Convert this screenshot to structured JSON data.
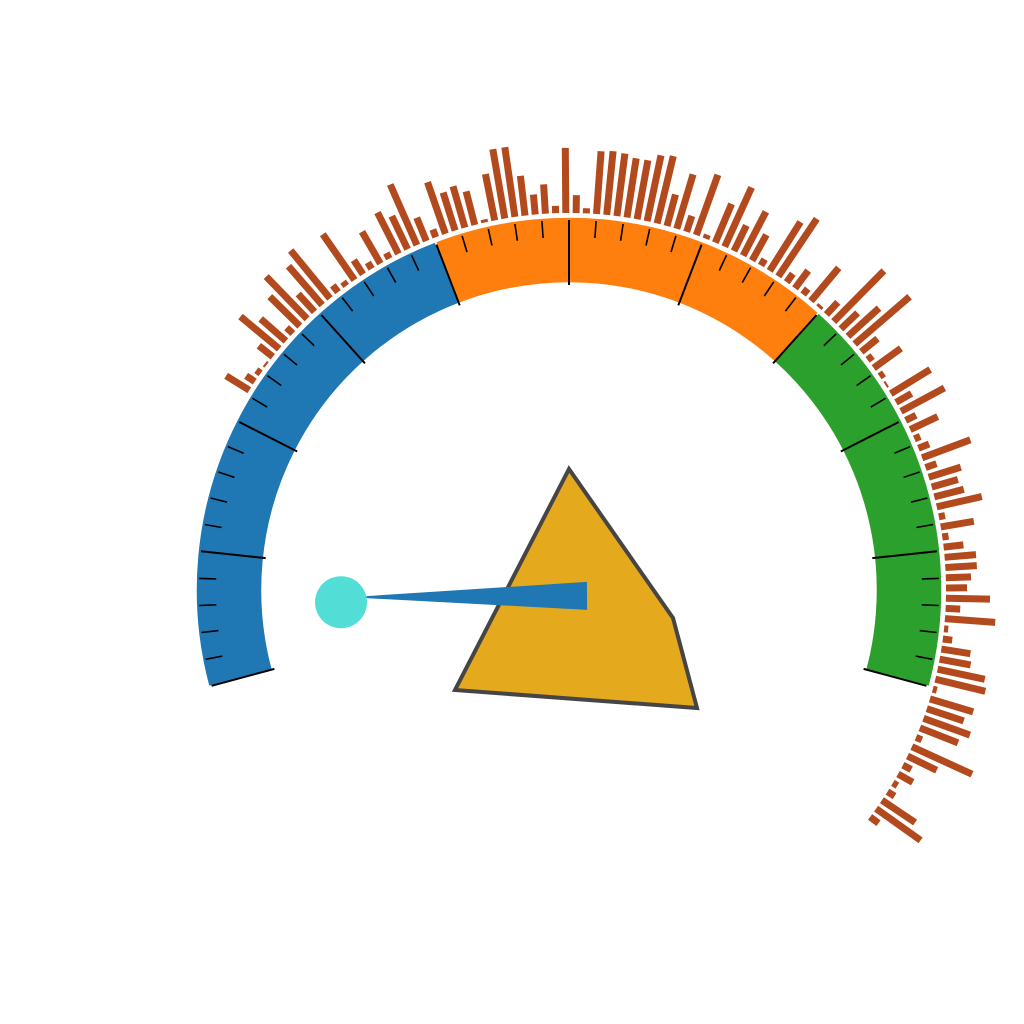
{
  "chart_data": {
    "type": "gauge",
    "start_angle_deg": 195,
    "end_angle_deg": -15,
    "scale": [
      0,
      100
    ],
    "major_tick_step": 10,
    "minor_tick_step": 2,
    "bands": [
      {
        "name": "",
        "from": 0,
        "to": 40,
        "color": "#1f77b4"
      },
      {
        "name": "",
        "from": 40,
        "to": 70,
        "color": "#ff7f0e"
      },
      {
        "name": "",
        "from": 70,
        "to": 100,
        "color": "#2ca02c"
      }
    ],
    "needle": {
      "value": 7,
      "color": "#1f77b4",
      "tip_color": "#52ded6"
    },
    "hub": {
      "color": "#e5a91e",
      "outline": "#454545"
    },
    "histogram": {
      "color": "#b24a1e",
      "from_angle_deg": 148,
      "to_angle_deg": -37,
      "values": [
        26,
        10,
        5,
        2,
        17,
        48,
        32,
        8,
        40,
        56,
        23,
        49,
        59,
        8,
        5,
        53,
        16,
        7,
        35,
        6,
        44,
        35,
        63,
        24,
        8,
        52,
        38,
        41,
        33,
        3,
        45,
        67,
        67,
        38,
        19,
        28,
        7,
        62,
        17,
        5,
        60,
        61,
        60,
        57,
        57,
        64,
        66,
        31,
        54,
        16,
        61,
        4,
        40,
        62,
        27,
        47,
        28,
        7,
        55,
        66,
        10,
        21,
        7,
        41,
        3,
        16,
        68,
        22,
        40,
        69,
        20,
        6,
        32,
        5,
        2,
        44,
        17,
        47,
        11,
        29,
        6,
        11,
        49,
        11,
        32,
        26,
        29,
        44,
        6,
        32,
        6,
        19,
        30,
        30,
        24,
        20,
        42,
        14,
        48,
        4,
        9,
        28,
        30,
        46,
        49,
        4,
        43,
        37,
        47,
        39,
        6,
        63,
        31,
        9,
        16,
        5,
        8,
        38,
        52,
        10
      ]
    }
  }
}
